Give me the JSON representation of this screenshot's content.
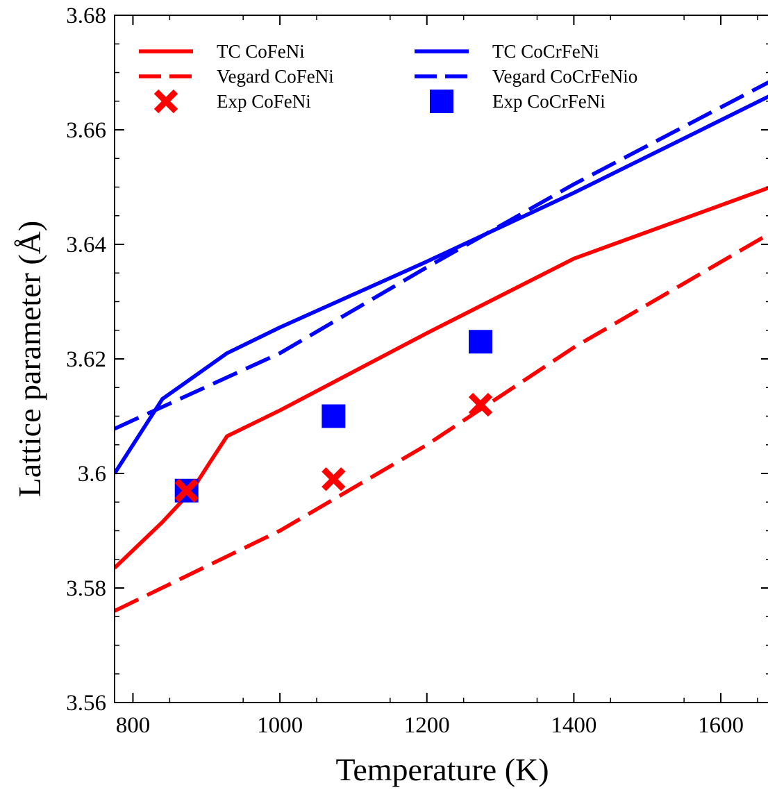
{
  "chart_data": {
    "type": "line",
    "title": "",
    "xlabel": "Temperature (K)",
    "ylabel": "Lattice parameter (Å)",
    "xlim": [
      775,
      1668
    ],
    "ylim": [
      3.56,
      3.68
    ],
    "x_ticks": [
      800,
      1000,
      1200,
      1400,
      1600
    ],
    "x_tick_labels": [
      "800",
      "1000",
      "1200",
      "1400",
      "1600"
    ],
    "y_ticks": [
      3.56,
      3.58,
      3.6,
      3.62,
      3.64,
      3.66,
      3.68
    ],
    "y_tick_labels": [
      "3.56",
      "3.58",
      "3.6",
      "3.62",
      "3.64",
      "3.66",
      "3.68"
    ],
    "grid": false,
    "legend_position": "top",
    "series": [
      {
        "name": "TC CoFeNi",
        "kind": "line",
        "style": "solid",
        "color": "#ff0000",
        "x": [
          775,
          840,
          880,
          905,
          928,
          1000,
          1200,
          1400,
          1668
        ],
        "y": [
          3.5835,
          3.5915,
          3.597,
          3.602,
          3.6065,
          3.611,
          3.6245,
          3.6375,
          3.65
        ]
      },
      {
        "name": "Vegard CoFeNi",
        "kind": "line",
        "style": "dashed",
        "color": "#ff0000",
        "x": [
          775,
          1000,
          1200,
          1400,
          1668
        ],
        "y": [
          3.576,
          3.59,
          3.605,
          3.622,
          3.642
        ]
      },
      {
        "name": "Exp CoFeNi",
        "kind": "scatter",
        "marker": "x",
        "color": "#ff0000",
        "x": [
          873,
          1073,
          1273
        ],
        "y": [
          3.597,
          3.599,
          3.612
        ]
      },
      {
        "name": "TC CoCrFeNi",
        "kind": "line",
        "style": "solid",
        "color": "#0000ff",
        "x": [
          775,
          840,
          928,
          1000,
          1200,
          1400,
          1668
        ],
        "y": [
          3.6,
          3.613,
          3.621,
          3.6255,
          3.637,
          3.649,
          3.666
        ]
      },
      {
        "name": "Vegard CoCrFeNio",
        "kind": "line",
        "style": "dashed",
        "color": "#0000ff",
        "x": [
          775,
          1000,
          1200,
          1400,
          1668
        ],
        "y": [
          3.6078,
          3.621,
          3.636,
          3.6505,
          3.6685
        ]
      },
      {
        "name": "Exp CoCrFeNi",
        "kind": "scatter",
        "marker": "square",
        "color": "#0000ff",
        "x": [
          873,
          1073,
          1273
        ],
        "y": [
          3.597,
          3.61,
          3.623
        ]
      }
    ]
  }
}
